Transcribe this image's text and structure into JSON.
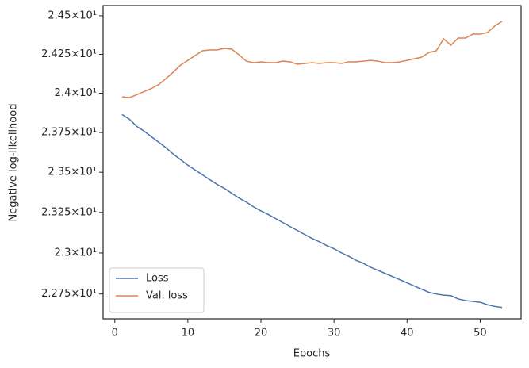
{
  "chart_data": {
    "type": "line",
    "xlabel": "Epochs",
    "ylabel": "Negative log-likelihood",
    "yscale": "log",
    "legend": "lower left",
    "x": [
      1,
      2,
      3,
      4,
      5,
      6,
      7,
      8,
      9,
      10,
      11,
      12,
      13,
      14,
      15,
      16,
      17,
      18,
      19,
      20,
      21,
      22,
      23,
      24,
      25,
      26,
      27,
      28,
      29,
      30,
      31,
      32,
      33,
      34,
      35,
      36,
      37,
      38,
      39,
      40,
      41,
      42,
      43,
      44,
      45,
      46,
      47,
      48,
      49,
      50,
      51,
      52,
      53
    ],
    "series": [
      {
        "name": "Loss",
        "color": "#4c72b0",
        "values": [
          23.864,
          23.834,
          23.789,
          23.759,
          23.724,
          23.689,
          23.654,
          23.614,
          23.579,
          23.544,
          23.514,
          23.484,
          23.454,
          23.424,
          23.399,
          23.369,
          23.339,
          23.314,
          23.284,
          23.259,
          23.237,
          23.212,
          23.187,
          23.162,
          23.138,
          23.113,
          23.089,
          23.069,
          23.045,
          23.026,
          23.001,
          22.98,
          22.956,
          22.937,
          22.913,
          22.894,
          22.875,
          22.856,
          22.837,
          22.818,
          22.798,
          22.779,
          22.76,
          22.75,
          22.743,
          22.74,
          22.72,
          22.71,
          22.705,
          22.7,
          22.685,
          22.675,
          22.668
        ]
      },
      {
        "name": "Val. loss",
        "color": "#dd8452",
        "values": [
          23.977,
          23.972,
          23.99,
          24.01,
          24.03,
          24.055,
          24.094,
          24.135,
          24.18,
          24.211,
          24.242,
          24.273,
          24.278,
          24.278,
          24.288,
          24.283,
          24.247,
          24.206,
          24.196,
          24.201,
          24.196,
          24.196,
          24.206,
          24.201,
          24.186,
          24.191,
          24.196,
          24.191,
          24.196,
          24.196,
          24.191,
          24.201,
          24.201,
          24.206,
          24.211,
          24.206,
          24.196,
          24.196,
          24.201,
          24.211,
          24.221,
          24.232,
          24.262,
          24.273,
          24.35,
          24.309,
          24.355,
          24.355,
          24.381,
          24.381,
          24.391,
          24.433,
          24.464
        ]
      }
    ],
    "xlim": [
      -1.6,
      55.6
    ],
    "xticks": [
      0,
      10,
      20,
      30,
      40,
      50
    ],
    "ylim": [
      22.6,
      24.567
    ],
    "yticks": [
      {
        "value": 22.75,
        "label": "2.275×10¹"
      },
      {
        "value": 23,
        "label": "2.3×10¹"
      },
      {
        "value": 23.25,
        "label": "2.325×10¹"
      },
      {
        "value": 23.5,
        "label": "2.35×10¹"
      },
      {
        "value": 23.75,
        "label": "2.375×10¹"
      },
      {
        "value": 24,
        "label": "2.4×10¹"
      },
      {
        "value": 24.25,
        "label": "2.425×10¹"
      },
      {
        "value": 24.5,
        "label": "2.45×10¹"
      }
    ],
    "grid": false
  }
}
